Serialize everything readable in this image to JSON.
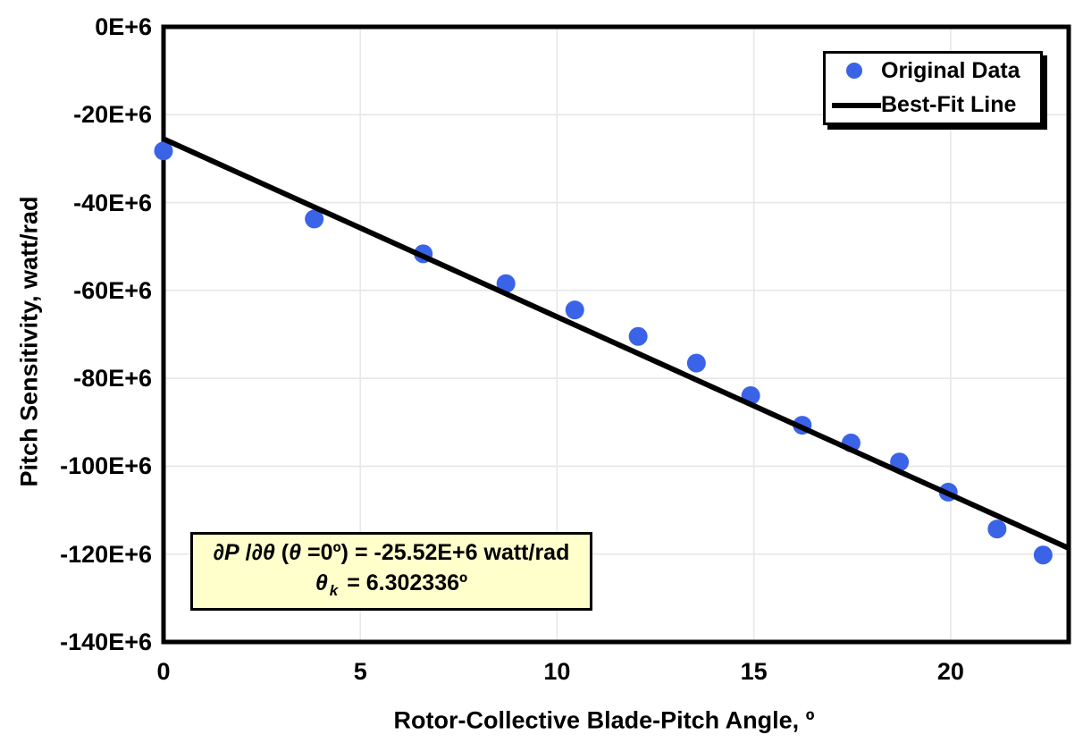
{
  "chart_data": {
    "type": "scatter",
    "title": "",
    "xlabel": "Rotor-Collective Blade-Pitch Angle, º",
    "ylabel": "Pitch Sensitivity, watt/rad",
    "xlim": [
      0,
      23
    ],
    "ylim": [
      -140,
      0
    ],
    "y_unit": "E+6 watt/rad",
    "grid": true,
    "legend_position": "top-right",
    "x_ticks": [
      0,
      5,
      10,
      15,
      20
    ],
    "x_tick_labels": [
      "0",
      "5",
      "10",
      "15",
      "20"
    ],
    "y_ticks": [
      0,
      -20,
      -40,
      -60,
      -80,
      -100,
      -120,
      -140
    ],
    "y_tick_labels": [
      "0E+6",
      "-20E+6",
      "-40E+6",
      "-60E+6",
      "-80E+6",
      "-100E+6",
      "-120E+6",
      "-140E+6"
    ],
    "colors": {
      "marker": "#3A63E8",
      "line": "#000000",
      "gridline": "#E7E7E7",
      "frame": "#000000",
      "annotation_bg": "#FFFFCC"
    },
    "series": [
      {
        "name": "Original Data",
        "type": "scatter",
        "color": "#3A63E8",
        "x": [
          0.0,
          3.83,
          6.6,
          8.7,
          10.45,
          12.06,
          13.54,
          14.92,
          16.23,
          17.47,
          18.7,
          19.94,
          21.18,
          22.35
        ],
        "y": [
          -28.24,
          -43.73,
          -51.66,
          -58.44,
          -64.44,
          -70.46,
          -76.53,
          -83.94,
          -90.67,
          -94.71,
          -99.04,
          -105.9,
          -114.3,
          -120.21
        ]
      },
      {
        "name": "Best-Fit Line",
        "type": "line",
        "color": "#000000",
        "x": [
          0,
          23
        ],
        "y": [
          -25.52,
          -118.65
        ]
      }
    ],
    "annotation": {
      "line1": [
        {
          "text": "∂P",
          "style": "it"
        },
        {
          "text": " /",
          "style": "n"
        },
        {
          "text": "∂θ",
          "style": "it"
        },
        {
          "text": " (",
          "style": "n"
        },
        {
          "text": "θ",
          "style": "it"
        },
        {
          "text": " =0º) = -25.52E+6 watt/rad",
          "style": "n"
        }
      ],
      "line2": [
        {
          "text": "θ",
          "style": "it"
        },
        {
          "text": "k",
          "style": "sub"
        },
        {
          "text": " = 6.302336º",
          "style": "n"
        }
      ]
    }
  }
}
